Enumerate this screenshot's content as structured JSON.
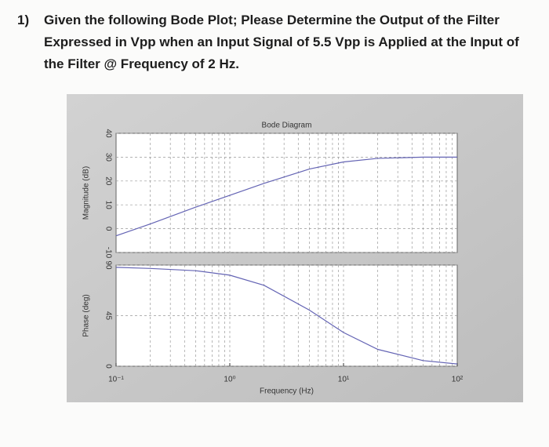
{
  "question": {
    "number": "1)",
    "text": "Given the following Bode Plot; Please Determine the Output of the Filter Expressed in Vpp when an Input Signal of 5.5 Vpp is Applied at the Input of the Filter @ Frequency of 2 Hz."
  },
  "chart_data": [
    {
      "type": "line",
      "title": "Bode Diagram",
      "y_label": "Magnitude (dB)",
      "x_scale": "log",
      "grid": true,
      "x": [
        0.1,
        0.2,
        0.5,
        1,
        2,
        5,
        10,
        20,
        50,
        100
      ],
      "series": [
        {
          "color": "#6464b4",
          "values": [
            -3,
            2,
            9,
            14,
            19,
            25,
            28,
            29.5,
            30,
            30
          ]
        }
      ],
      "xlim": [
        0.1,
        100
      ],
      "ylim": [
        -10,
        40
      ],
      "yticks": [
        -10,
        0,
        10,
        20,
        30,
        40
      ]
    },
    {
      "type": "line",
      "x_label": "Frequency (Hz)",
      "y_label": "Phase (deg)",
      "x_scale": "log",
      "grid": true,
      "x": [
        0.1,
        0.2,
        0.5,
        1,
        2,
        5,
        10,
        20,
        50,
        100
      ],
      "series": [
        {
          "color": "#6464b4",
          "values": [
            88,
            87,
            85,
            81,
            72,
            50,
            30,
            15,
            5,
            2
          ]
        }
      ],
      "xlim": [
        0.1,
        100
      ],
      "xticks": [
        {
          "value": 0.1,
          "label": "10⁻¹"
        },
        {
          "value": 1,
          "label": "10⁰"
        },
        {
          "value": 10,
          "label": "10¹"
        },
        {
          "value": 100,
          "label": "10²"
        }
      ],
      "ylim": [
        0,
        90
      ],
      "yticks": [
        0,
        45,
        90
      ]
    }
  ]
}
